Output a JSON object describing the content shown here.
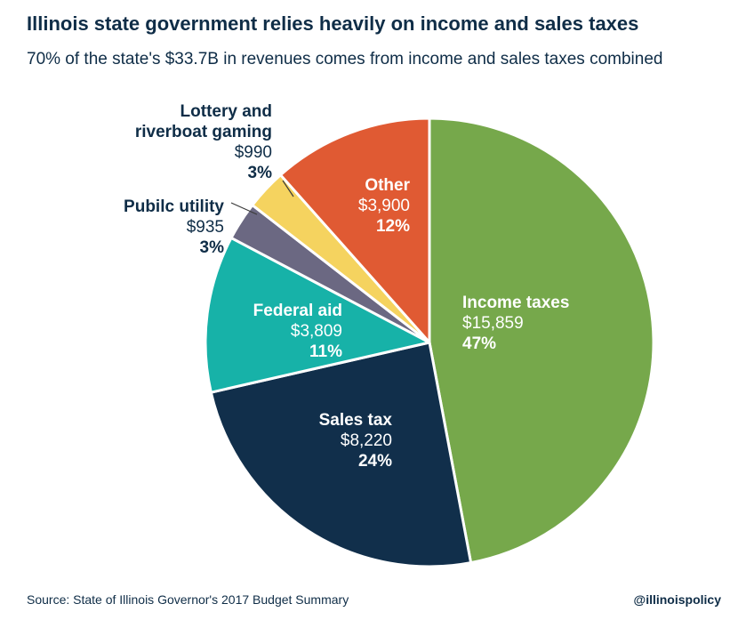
{
  "title": "Illinois state government relies heavily on income and sales taxes",
  "subtitle": "70% of the state's $33.7B in revenues comes from income and sales taxes combined",
  "source": "Source: State of Illinois Governor's 2017 Budget Summary",
  "handle": "@illinoispolicy",
  "chart_data": {
    "type": "pie",
    "title": "Illinois state government relies heavily on income and sales taxes",
    "subtitle": "70% of the state's $33.7B in revenues comes from income and sales taxes combined",
    "slices": [
      {
        "label": "Income taxes",
        "value": 15859,
        "value_label": "$15,859",
        "percent_label": "47%",
        "color": "#76a84b"
      },
      {
        "label": "Sales tax",
        "value": 8220,
        "value_label": "$8,220",
        "percent_label": "24%",
        "color": "#112f4b"
      },
      {
        "label": "Federal aid",
        "value": 3809,
        "value_label": "$3,809",
        "percent_label": "11%",
        "color": "#17b2a8"
      },
      {
        "label": "Pubilc utility",
        "value": 935,
        "value_label": "$935",
        "percent_label": "3%",
        "color": "#6b6882"
      },
      {
        "label": "Lottery and riverboat gaming",
        "label_lines": [
          "Lottery and",
          "riverboat gaming"
        ],
        "value": 990,
        "value_label": "$990",
        "percent_label": "3%",
        "color": "#f5d35f"
      },
      {
        "label": "Other",
        "value": 3900,
        "value_label": "$3,900",
        "percent_label": "12%",
        "color": "#e05a33"
      }
    ]
  }
}
